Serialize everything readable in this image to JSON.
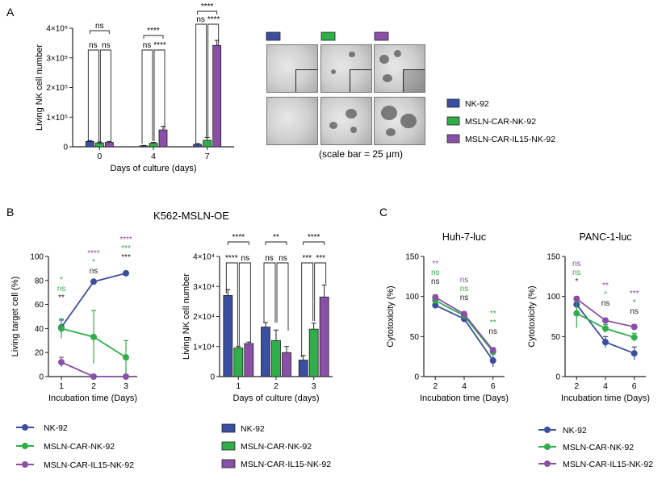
{
  "panel_labels": {
    "a": "A",
    "b": "B",
    "c": "C"
  },
  "colors": {
    "nk92": "#3b4fa0",
    "mslncar": "#2fae4a",
    "il15": "#8a4fa6"
  },
  "legend_a": {
    "items": [
      "NK-92",
      "MSLN-CAR-NK-92",
      "MSLN-CAR-IL15-NK-92"
    ]
  },
  "legend_b_line": {
    "items": [
      "NK-92",
      "MSLN-CAR-NK-92",
      "MSLN-CAR-IL15-NK-92"
    ]
  },
  "legend_b_bar": {
    "items": [
      "NK-92",
      "MSLN-CAR-NK-92",
      "MSLN-CAR-IL15-NK-92"
    ]
  },
  "legend_c": {
    "items": [
      "NK-92",
      "MSLN-CAR-NK-92",
      "MSLN-CAR-IL15-NK-92"
    ]
  },
  "micrographs": {
    "scale_bar_caption": "(scale bar = 25 μm)"
  },
  "b_title": "K562-MSLN-OE",
  "chart_data": [
    {
      "id": "a-bar",
      "type": "bar",
      "xlabel": "Days of culture (days)",
      "ylabel": "Living NK cell number",
      "categories": [
        "0",
        "4",
        "7"
      ],
      "y_ticks": [
        "0",
        "1×10⁵",
        "2×10⁵",
        "3×10⁵",
        "4×10⁵"
      ],
      "ylim": [
        0,
        400000
      ],
      "series": [
        {
          "name": "NK-92",
          "values": [
            18000,
            3000,
            8000
          ],
          "err": [
            3000,
            1500,
            3000
          ]
        },
        {
          "name": "MSLN-CAR-NK-92",
          "values": [
            13000,
            12000,
            22000
          ],
          "err": [
            3000,
            3000,
            9000
          ]
        },
        {
          "name": "MSLN-CAR-IL15-NK-92",
          "values": [
            15000,
            57000,
            342000
          ],
          "err": [
            3000,
            12000,
            17000
          ]
        }
      ],
      "annotations": [
        "ns",
        "ns",
        "ns",
        "****",
        "ns",
        "****",
        "****",
        "ns",
        "****"
      ]
    },
    {
      "id": "b-line",
      "type": "line",
      "xlabel": "Incubation time (Days)",
      "ylabel": "Living target cell (%)",
      "x": [
        1,
        2,
        3
      ],
      "ylim": [
        0,
        100
      ],
      "y_ticks": [
        "0",
        "20",
        "40",
        "60",
        "80",
        "100"
      ],
      "series": [
        {
          "name": "NK-92",
          "values": [
            41,
            79,
            86
          ],
          "err": [
            6,
            1,
            1
          ]
        },
        {
          "name": "MSLN-CAR-NK-92",
          "values": [
            40,
            33,
            16
          ],
          "err": [
            8,
            22,
            14
          ]
        },
        {
          "name": "MSLN-CAR-IL15-NK-92",
          "values": [
            12,
            0,
            0
          ],
          "err": [
            4,
            1,
            1
          ]
        }
      ],
      "annotations": {
        "day1": [
          "*",
          "ns",
          "**"
        ],
        "day2": [
          "****",
          "*",
          "ns"
        ],
        "day3": [
          "****",
          "***",
          "***"
        ]
      }
    },
    {
      "id": "b-bar",
      "type": "bar",
      "xlabel": "Days of culture (days)",
      "ylabel": "Living NK cell number",
      "categories": [
        "1",
        "2",
        "3"
      ],
      "y_ticks": [
        "0",
        "1×10⁴",
        "2×10⁴",
        "3×10⁴",
        "4×10⁴"
      ],
      "ylim": [
        0,
        40000
      ],
      "series": [
        {
          "name": "NK-92",
          "values": [
            27000,
            16500,
            5500
          ],
          "err": [
            2000,
            1500,
            1500
          ]
        },
        {
          "name": "MSLN-CAR-NK-92",
          "values": [
            9500,
            12000,
            15800
          ],
          "err": [
            500,
            3500,
            2000
          ]
        },
        {
          "name": "MSLN-CAR-IL15-NK-92",
          "values": [
            11000,
            8000,
            26500
          ],
          "err": [
            500,
            2000,
            4000
          ]
        }
      ],
      "annotations": [
        "****",
        "****",
        "ns",
        "**",
        "ns",
        "ns",
        "****",
        "***",
        "***"
      ]
    },
    {
      "id": "c-huh7",
      "type": "line",
      "title": "Huh-7-luc",
      "xlabel": "Incubation time (Days)",
      "ylabel": "Cytotoxicity (%)",
      "x": [
        2,
        4,
        6
      ],
      "ylim": [
        0,
        150
      ],
      "y_ticks": [
        "0",
        "50",
        "100",
        "150"
      ],
      "series": [
        {
          "name": "NK-92",
          "values": [
            89,
            72,
            20
          ],
          "err": [
            3,
            4,
            8
          ]
        },
        {
          "name": "MSLN-CAR-NK-92",
          "values": [
            95,
            76,
            31
          ],
          "err": [
            3,
            3,
            3
          ]
        },
        {
          "name": "MSLN-CAR-IL15-NK-92",
          "values": [
            99,
            78,
            33
          ],
          "err": [
            3,
            3,
            3
          ]
        }
      ],
      "annotations": {
        "day2": [
          "**",
          "ns",
          "ns"
        ],
        "day4": [
          "ns",
          "ns",
          "ns"
        ],
        "day6": [
          "**",
          "**",
          "ns"
        ]
      }
    },
    {
      "id": "c-panc1",
      "type": "line",
      "title": "PANC-1-luc",
      "xlabel": "Incubation time (Days)",
      "ylabel": "Cytotoxicity (%)",
      "x": [
        2,
        4,
        6
      ],
      "ylim": [
        0,
        150
      ],
      "y_ticks": [
        "0",
        "50",
        "100",
        "150"
      ],
      "series": [
        {
          "name": "NK-92",
          "values": [
            90,
            43,
            29
          ],
          "err": [
            8,
            7,
            8
          ]
        },
        {
          "name": "MSLN-CAR-NK-92",
          "values": [
            79,
            60,
            49
          ],
          "err": [
            18,
            5,
            5
          ]
        },
        {
          "name": "MSLN-CAR-IL15-NK-92",
          "values": [
            97,
            70,
            62
          ],
          "err": [
            3,
            3,
            3
          ]
        }
      ],
      "annotations": {
        "day2": [
          "ns",
          "ns",
          "*"
        ],
        "day4": [
          "**",
          "*",
          "ns"
        ],
        "day6": [
          "***",
          "*",
          "ns"
        ]
      }
    }
  ]
}
